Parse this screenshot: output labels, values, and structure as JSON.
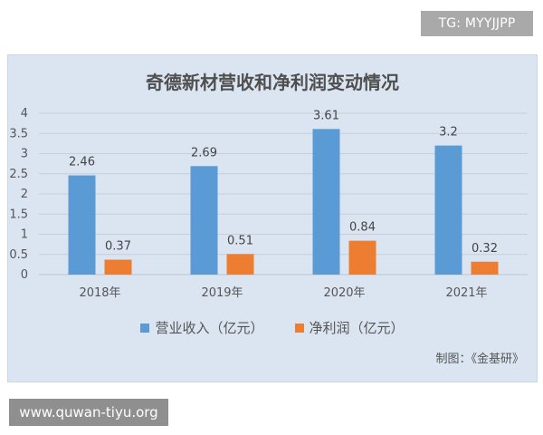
{
  "watermark_top": "TG: MYYJJPP",
  "watermark_bottom": "www.quwan-tiyu.org",
  "credit": "制图：《金基研》",
  "colors": {
    "panel_bg": "#dbe5f1",
    "series_revenue": "#5b9bd5",
    "series_profit": "#ed7d31"
  },
  "chart_data": {
    "type": "bar",
    "title": "奇德新材营收和净利润变动情况",
    "xlabel": "",
    "ylabel": "",
    "categories": [
      "2018年",
      "2019年",
      "2020年",
      "2021年"
    ],
    "yticks": [
      "0",
      "0.5",
      "1",
      "1.5",
      "2",
      "2.5",
      "3",
      "3.5",
      "4"
    ],
    "ylim": [
      0,
      4
    ],
    "grid": true,
    "legend_position": "bottom",
    "series": [
      {
        "name": "营业收入（亿元）",
        "values": [
          2.46,
          2.69,
          3.61,
          3.2
        ],
        "labels": [
          "2.46",
          "2.69",
          "3.61",
          "3.2"
        ],
        "color": "#5b9bd5"
      },
      {
        "name": "净利润（亿元）",
        "values": [
          0.37,
          0.51,
          0.84,
          0.32
        ],
        "labels": [
          "0.37",
          "0.51",
          "0.84",
          "0.32"
        ],
        "color": "#ed7d31"
      }
    ]
  }
}
